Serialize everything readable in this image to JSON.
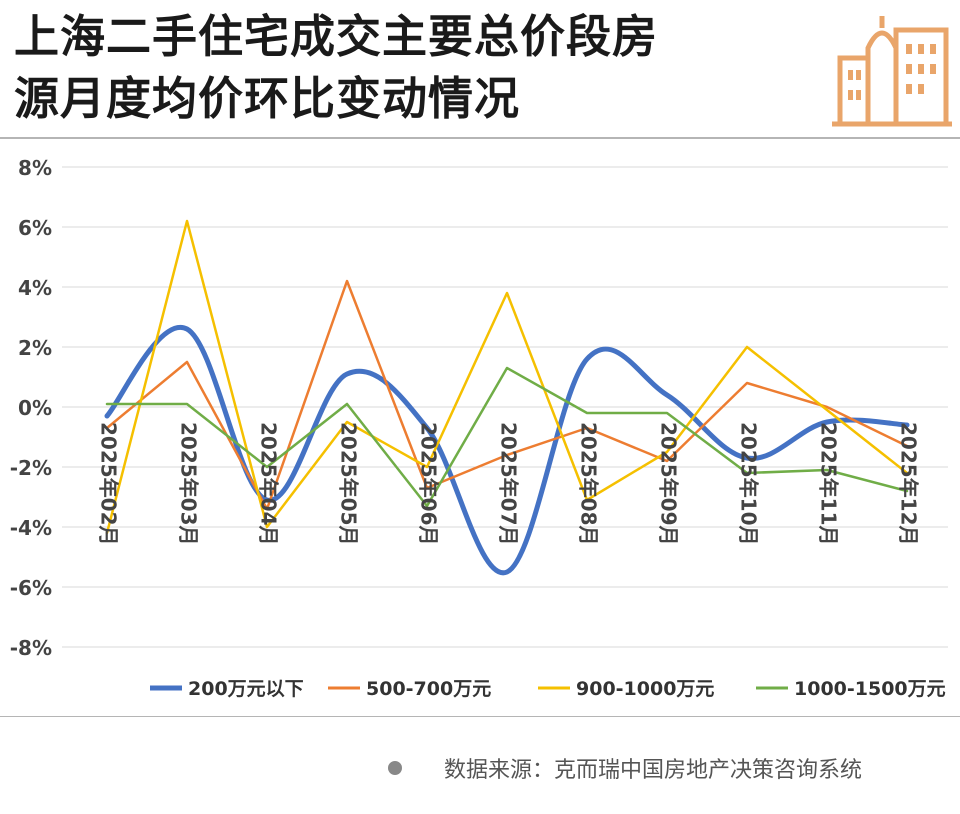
{
  "header": {
    "title_line1": "上海二手住宅成交主要总价段房",
    "title_line2": "源月度均价环比变动情况",
    "logo_icon": "building-icon",
    "logo_color": "#e9a56a"
  },
  "footer": {
    "source": "数据来源：克而瑞中国房地产决策咨询系统"
  },
  "chart_data": {
    "type": "line",
    "categories": [
      "2025年02月",
      "2025年03月",
      "2025年04月",
      "2025年05月",
      "2025年06月",
      "2025年07月",
      "2025年08月",
      "2025年09月",
      "2025年10月",
      "2025年11月",
      "2025年12月"
    ],
    "ylim": [
      -8,
      8
    ],
    "yticks": [
      "8%",
      "6%",
      "4%",
      "2%",
      "0%",
      "-2%",
      "-4%",
      "-6%",
      "-8%"
    ],
    "grid": true,
    "legend": "bottom",
    "series": [
      {
        "name": "200万元以下",
        "color": "#4472c4",
        "smooth": true,
        "values": [
          -0.3,
          2.6,
          -3.1,
          1.1,
          -0.7,
          -5.5,
          1.6,
          0.4,
          -1.7,
          -0.5,
          -0.6
        ]
      },
      {
        "name": "500-700万元",
        "color": "#ed7d31",
        "smooth": false,
        "values": [
          -0.7,
          1.5,
          -3.4,
          4.2,
          -2.7,
          -1.6,
          -0.7,
          -1.8,
          0.8,
          0.0,
          -1.3
        ]
      },
      {
        "name": "900-1000万元",
        "color": "#f5c000",
        "smooth": false,
        "values": [
          -4.2,
          6.2,
          -4.0,
          -0.5,
          -2.0,
          3.8,
          -3.1,
          -1.5,
          2.0,
          -0.1,
          -2.2
        ]
      },
      {
        "name": "1000-1500万元",
        "color": "#70ad47",
        "smooth": false,
        "values": [
          0.1,
          0.1,
          -2.0,
          0.1,
          -3.3,
          1.3,
          -0.2,
          -0.2,
          -2.2,
          -2.1,
          -2.8
        ]
      }
    ]
  }
}
